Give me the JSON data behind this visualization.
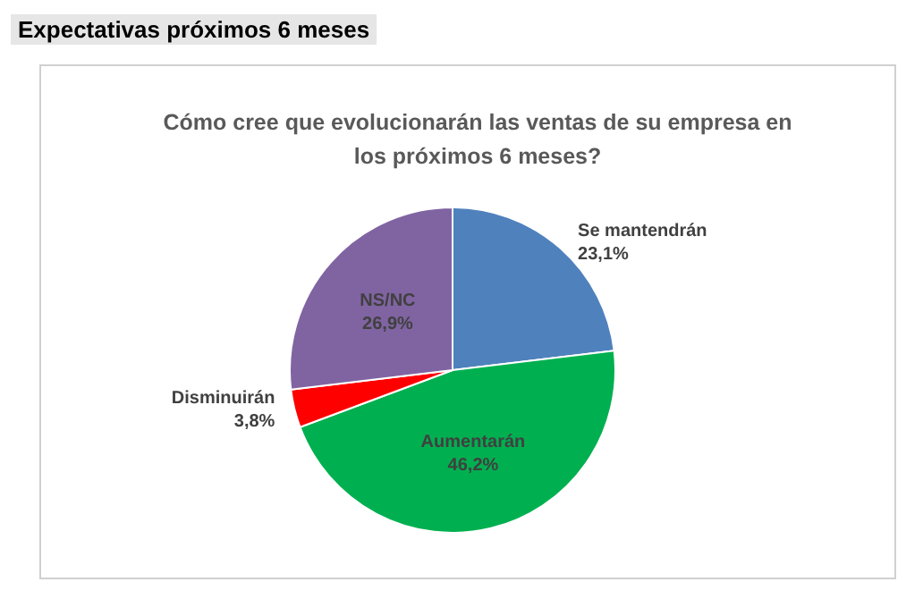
{
  "chart_data": {
    "type": "pie",
    "title": "Expectativas próximos 6 meses",
    "subtitle": "Cómo cree que evolucionarán las ventas de su empresa en\nlos próximos 6 meses?",
    "categories": [
      "Se mantendrán",
      "Aumentarán",
      "Disminuirán",
      "NS/NC"
    ],
    "values": [
      23.1,
      46.2,
      3.8,
      26.9
    ],
    "value_labels": [
      "23,1%",
      "46,2%",
      "3,8%",
      "26,9%"
    ],
    "colors": [
      "#4f81bd",
      "#00b050",
      "#ff0000",
      "#8064a2"
    ],
    "legend": false
  }
}
